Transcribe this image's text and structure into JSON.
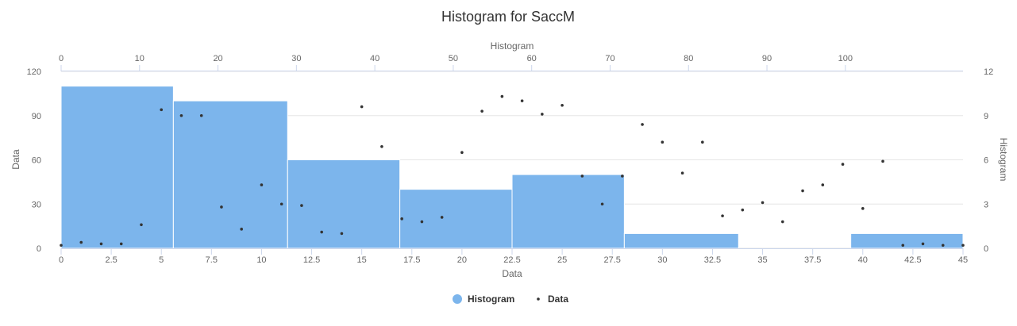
{
  "chart_data": {
    "type": "histogram+scatter",
    "title": "Histogram for SaccM",
    "colors": {
      "histogram": "#7cb5ec",
      "points": "#333333",
      "grid": "#e6e6e6",
      "axis": "#ccd6eb"
    },
    "axes": {
      "bottom": {
        "title": "Data",
        "min": 0,
        "max": 45,
        "ticks": [
          "0",
          "2.5",
          "5",
          "7.5",
          "10",
          "12.5",
          "15",
          "17.5",
          "20",
          "22.5",
          "25",
          "27.5",
          "30",
          "32.5",
          "35",
          "37.5",
          "40",
          "42.5",
          "45"
        ]
      },
      "top": {
        "title": "Histogram",
        "min": 0,
        "max": 115,
        "ticks": [
          "0",
          "10",
          "20",
          "30",
          "40",
          "50",
          "60",
          "70",
          "80",
          "90",
          "100"
        ]
      },
      "left": {
        "title": "Data",
        "min": 0,
        "max": 120,
        "ticks": [
          "0",
          "30",
          "60",
          "90",
          "120"
        ]
      },
      "right": {
        "title": "Histogram",
        "min": 0,
        "max": 12,
        "ticks": [
          "0",
          "3",
          "6",
          "9",
          "12"
        ]
      }
    },
    "histogram": {
      "name": "Histogram",
      "bins": [
        {
          "x0": 0.0,
          "x1": 5.6,
          "count": 11
        },
        {
          "x0": 5.6,
          "x1": 11.3,
          "count": 10
        },
        {
          "x0": 11.3,
          "x1": 16.9,
          "count": 6
        },
        {
          "x0": 16.9,
          "x1": 22.5,
          "count": 4
        },
        {
          "x0": 22.5,
          "x1": 28.1,
          "count": 5
        },
        {
          "x0": 28.1,
          "x1": 33.8,
          "count": 1
        },
        {
          "x0": 33.8,
          "x1": 39.4,
          "count": 0
        },
        {
          "x0": 39.4,
          "x1": 45.0,
          "count": 1
        }
      ]
    },
    "points": {
      "name": "Data",
      "x": [
        0,
        1,
        2,
        3,
        4,
        5,
        6,
        7,
        8,
        9,
        10,
        11,
        12,
        13,
        14,
        15,
        16,
        17,
        18,
        19,
        20,
        21,
        22,
        23,
        24,
        25,
        26,
        27,
        28,
        29,
        30,
        31,
        32,
        33,
        34,
        35,
        36,
        37,
        38,
        39,
        40,
        41,
        42,
        43,
        44,
        45
      ],
      "y": [
        2,
        4,
        3,
        3,
        16,
        94,
        90,
        90,
        28,
        13,
        43,
        30,
        29,
        11,
        10,
        96,
        69,
        20,
        18,
        21,
        65,
        93,
        103,
        100,
        91,
        97,
        49,
        30,
        49,
        84,
        72,
        51,
        72,
        22,
        26,
        31,
        18,
        39,
        43,
        57,
        27,
        59,
        2,
        3,
        2,
        2
      ]
    },
    "legend": [
      "Histogram",
      "Data"
    ]
  }
}
